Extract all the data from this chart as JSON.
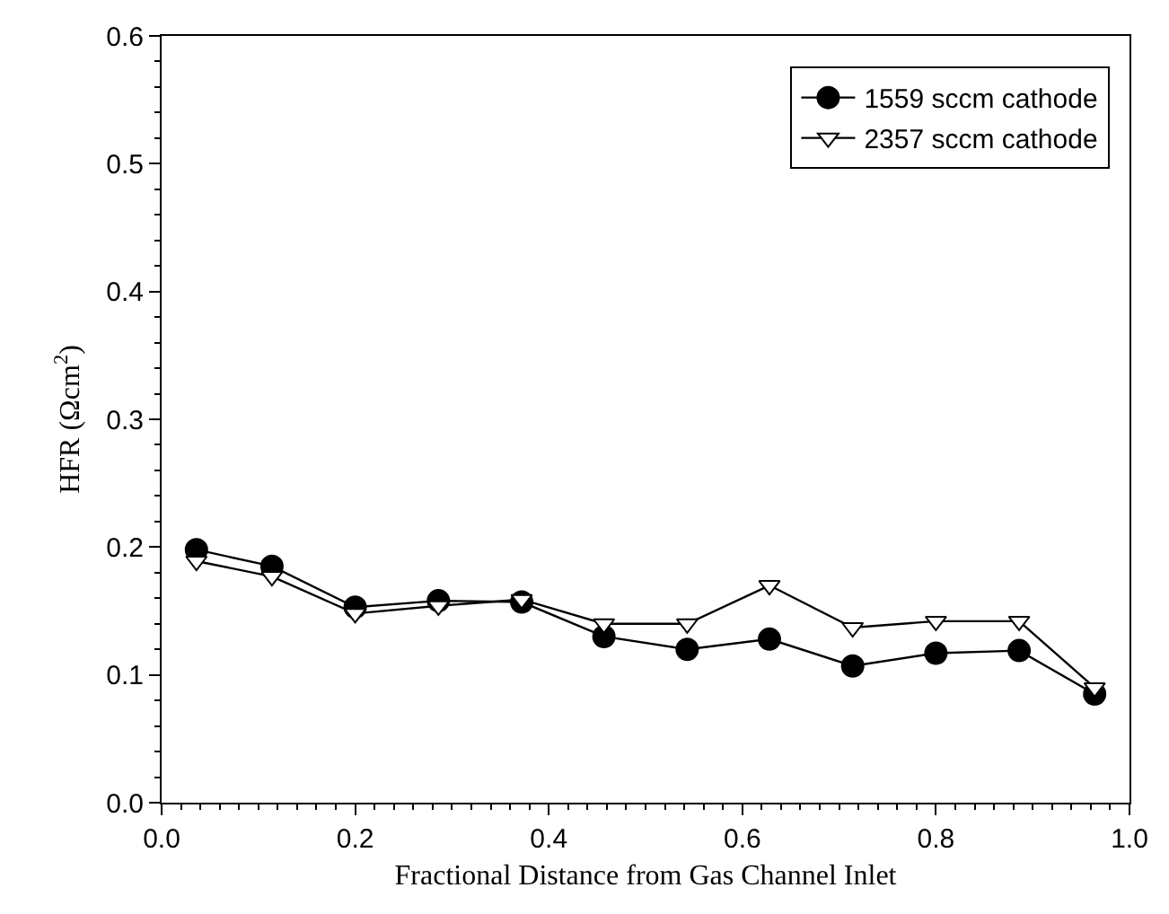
{
  "chart_data": {
    "type": "line",
    "xlabel": "Fractional Distance from Gas Channel Inlet",
    "ylabel": "HFR (Ωcm$^{2}$)",
    "x": [
      0.036,
      0.114,
      0.2,
      0.286,
      0.372,
      0.457,
      0.543,
      0.628,
      0.714,
      0.8,
      0.886,
      0.964
    ],
    "series": [
      {
        "name": "1559 sccm cathode",
        "color": "#000000",
        "marker": "circle",
        "values": [
          0.198,
          0.185,
          0.153,
          0.158,
          0.157,
          0.13,
          0.12,
          0.128,
          0.107,
          0.117,
          0.119,
          0.085
        ]
      },
      {
        "name": "2357 sccm cathode",
        "color": "#000000",
        "marker": "triangle",
        "values": [
          0.189,
          0.177,
          0.148,
          0.154,
          0.159,
          0.14,
          0.14,
          0.17,
          0.137,
          0.142,
          0.142,
          0.09
        ]
      }
    ],
    "xlim": [
      0,
      1
    ],
    "xticks": [
      {
        "value": 0,
        "label": "0.0"
      },
      0.2,
      0.4,
      0.6,
      0.8,
      {
        "value": 1,
        "label": "1.0"
      }
    ],
    "ylim": [
      0,
      0.6
    ],
    "yticks": [
      {
        "value": 0,
        "label": "0.0"
      },
      0.1,
      0.2,
      0.3,
      0.4,
      0.5,
      0.6
    ],
    "grid": false,
    "legend": "top right",
    "line_style": "solid"
  }
}
